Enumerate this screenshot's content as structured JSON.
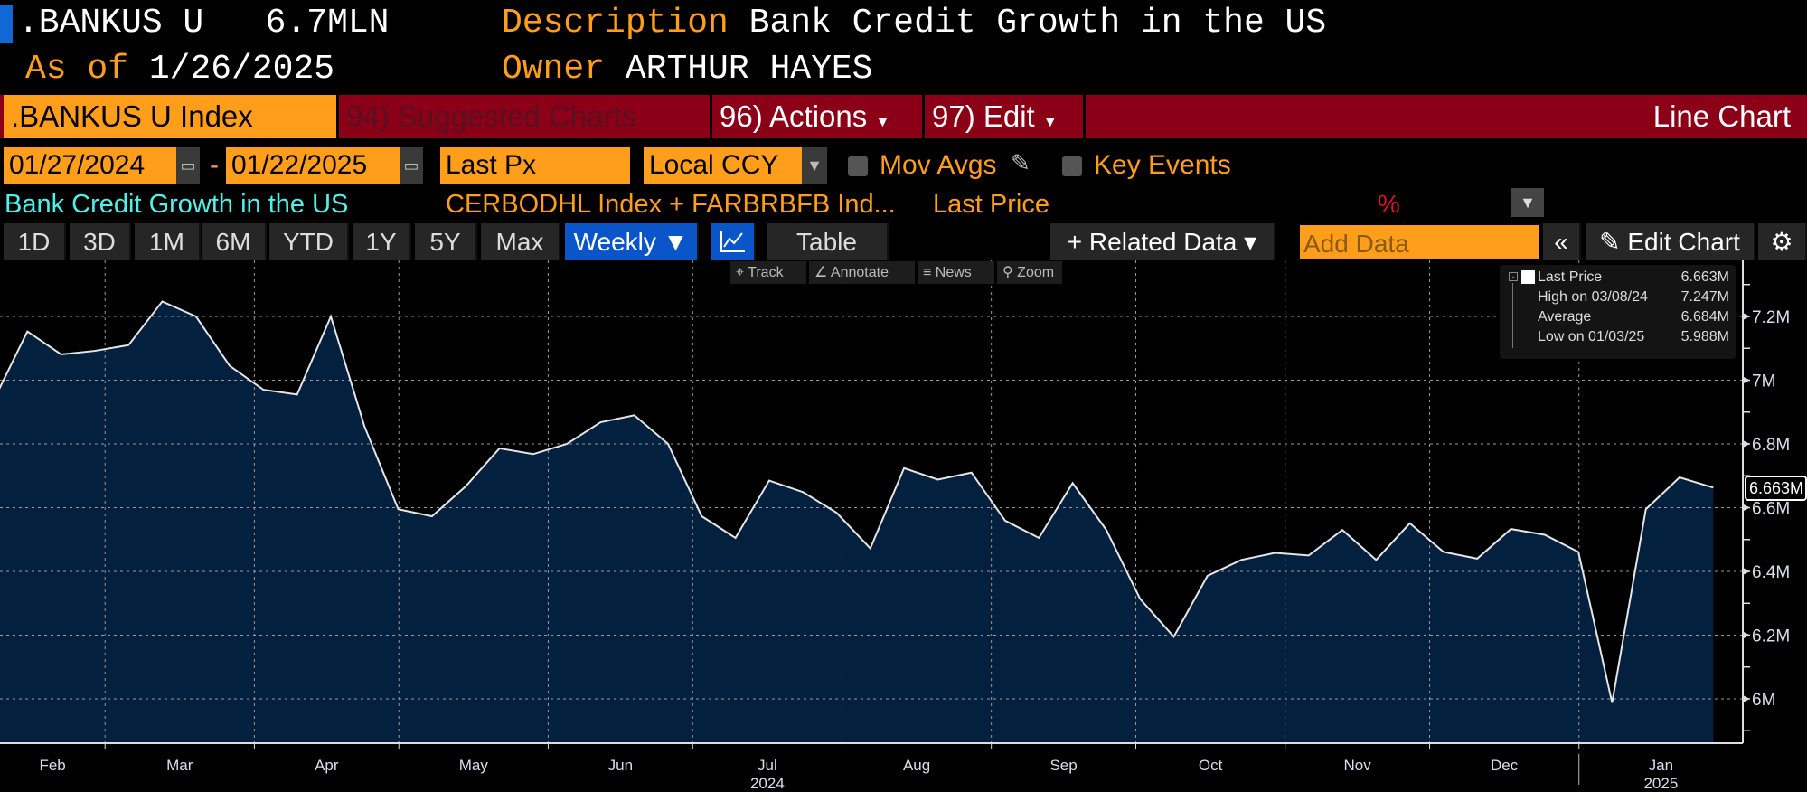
{
  "header": {
    "ticker": ".BANKUS U",
    "value": "6.7MLN",
    "description_label": "Description",
    "description": "Bank Credit Growth in the US",
    "asof_label": "As of",
    "asof": "1/26/2025",
    "owner_label": "Owner",
    "owner": "ARTHUR HAYES"
  },
  "menubar": {
    "security": ".BANKUS U Index",
    "suggested": "94) Suggested Charts",
    "actions": "96) Actions",
    "edit": "97) Edit",
    "chart_type": "Line Chart"
  },
  "controls": {
    "start_date": "01/27/2024",
    "dash": "-",
    "end_date": "01/22/2025",
    "field": "Last Px",
    "currency": "Local CCY",
    "mov_avgs": "Mov Avgs",
    "key_events": "Key Events"
  },
  "subtitle": {
    "name": "Bank Credit Growth in the US",
    "formula": "CERBODHL Index + FARBRBFB Ind...",
    "field": "Last Price",
    "percent": "%"
  },
  "toolbar": {
    "periods": [
      "1D",
      "3D",
      "1M",
      "6M",
      "YTD",
      "1Y",
      "5Y",
      "Max"
    ],
    "frequency": "Weekly ▼",
    "table": "Table",
    "related": "+ Related Data ▾",
    "add_data_placeholder": "Add Data",
    "collapse": "«",
    "edit_chart": "Edit Chart"
  },
  "mini_tools": [
    "Track",
    "Annotate",
    "News",
    "Zoom"
  ],
  "legend": {
    "last_label": "Last Price",
    "last_value": "6.663M",
    "high_label": "High on 03/08/24",
    "high_value": "7.247M",
    "avg_label": "Average",
    "avg_value": "6.684M",
    "low_label": "Low on 01/03/25",
    "low_value": "5.988M"
  },
  "colors": {
    "accent": "#ff9e1b",
    "menubar": "#8c0017",
    "fill": "#04203f",
    "line": "#e6e6e6"
  },
  "chart_data": {
    "type": "area",
    "title": "Bank Credit Growth in the US",
    "x_start": "2024-02-02",
    "frequency": "weekly",
    "values": [
      6.937,
      7.153,
      7.081,
      7.092,
      7.11,
      7.247,
      7.2,
      7.045,
      6.97,
      6.955,
      7.2,
      6.854,
      6.595,
      6.573,
      6.667,
      6.786,
      6.768,
      6.8,
      6.868,
      6.89,
      6.8,
      6.573,
      6.505,
      6.685,
      6.649,
      6.584,
      6.472,
      6.724,
      6.688,
      6.71,
      6.559,
      6.505,
      6.677,
      6.53,
      6.314,
      6.195,
      6.386,
      6.436,
      6.458,
      6.45,
      6.53,
      6.436,
      6.551,
      6.461,
      6.44,
      6.533,
      6.515,
      6.461,
      5.988,
      6.595,
      6.695,
      6.663
    ],
    "unit": "M",
    "ylim": [
      5.86,
      7.38
    ],
    "yticks": [
      "6M",
      "6.2M",
      "6.4M",
      "6.6M",
      "6.8M",
      "7M",
      "7.2M"
    ],
    "ytick_values": [
      6,
      6.2,
      6.4,
      6.6,
      6.8,
      7,
      7.2
    ],
    "months": [
      "Feb",
      "Mar",
      "Apr",
      "May",
      "Jun",
      "Jul",
      "Aug",
      "Sep",
      "Oct",
      "Nov",
      "Dec",
      "Jan"
    ],
    "years": [
      "2024",
      "2025"
    ],
    "last_label": "6.663M",
    "grid": true
  }
}
